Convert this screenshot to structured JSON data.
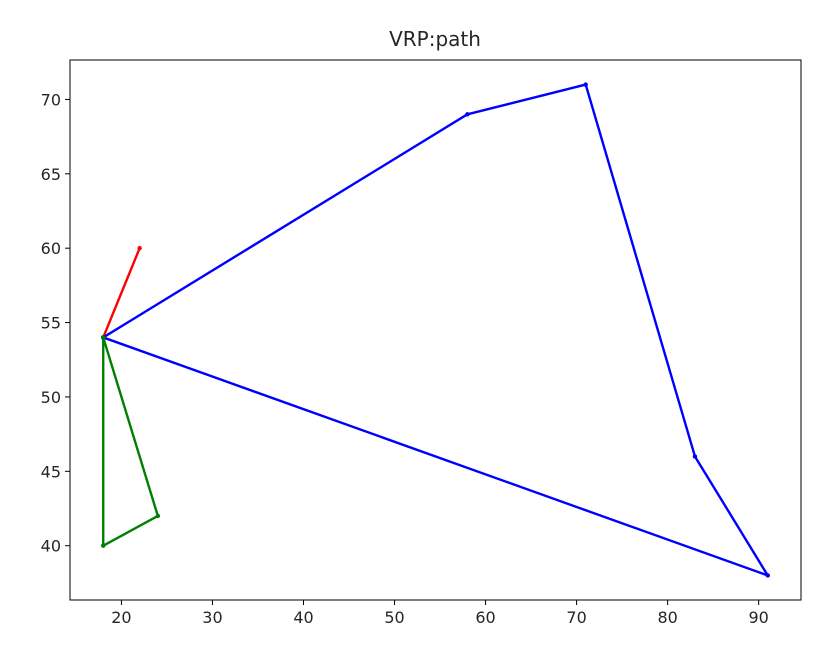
{
  "chart_data": {
    "type": "line",
    "title": "VRP:path",
    "xlabel": "",
    "ylabel": "",
    "xlim": [
      14.35,
      94.65
    ],
    "ylim": [
      36.35,
      72.65
    ],
    "x_ticks": [
      20,
      30,
      40,
      50,
      60,
      70,
      80,
      90
    ],
    "y_ticks": [
      40,
      45,
      50,
      55,
      60,
      65,
      70
    ],
    "grid": false,
    "legend": "none",
    "series": [
      {
        "color": "#ff0000",
        "points": [
          [
            18,
            54
          ],
          [
            22,
            60
          ]
        ]
      },
      {
        "color": "#0000ff",
        "points": [
          [
            18,
            54
          ],
          [
            58,
            69
          ],
          [
            71,
            71
          ],
          [
            83,
            46
          ],
          [
            91,
            38
          ],
          [
            18,
            54
          ]
        ]
      },
      {
        "color": "#008000",
        "points": [
          [
            18,
            54
          ],
          [
            24,
            42
          ],
          [
            18,
            40
          ],
          [
            18,
            54
          ]
        ]
      }
    ]
  }
}
